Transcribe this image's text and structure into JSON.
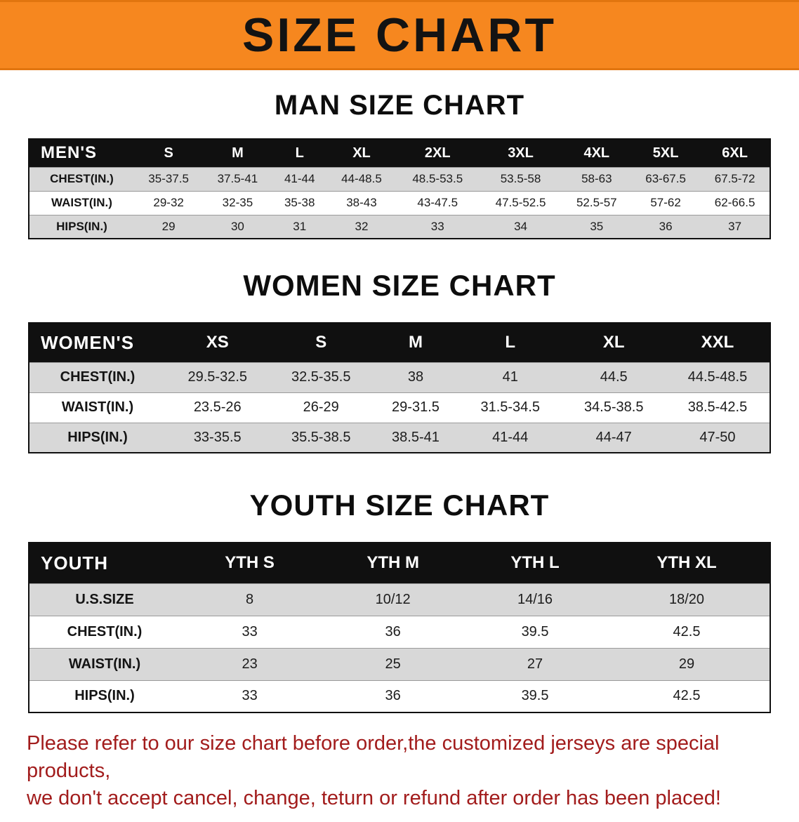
{
  "banner": {
    "title": "SIZE CHART",
    "bg_color": "#f6871f"
  },
  "sections": [
    {
      "id": "men",
      "heading": "MAN SIZE CHART",
      "table": {
        "corner_label": "MEN'S",
        "columns": [
          "S",
          "M",
          "L",
          "XL",
          "2XL",
          "3XL",
          "4XL",
          "5XL",
          "6XL"
        ],
        "rows": [
          {
            "label": "CHEST(IN.)",
            "values": [
              "35-37.5",
              "37.5-41",
              "41-44",
              "44-48.5",
              "48.5-53.5",
              "53.5-58",
              "58-63",
              "63-67.5",
              "67.5-72"
            ]
          },
          {
            "label": "WAIST(IN.)",
            "values": [
              "29-32",
              "32-35",
              "35-38",
              "38-43",
              "43-47.5",
              "47.5-52.5",
              "52.5-57",
              "57-62",
              "62-66.5"
            ]
          },
          {
            "label": "HIPS(IN.)",
            "values": [
              "29",
              "30",
              "31",
              "32",
              "33",
              "34",
              "35",
              "36",
              "37"
            ]
          }
        ]
      }
    },
    {
      "id": "women",
      "heading": "WOMEN SIZE CHART",
      "table": {
        "corner_label": "WOMEN'S",
        "columns": [
          "XS",
          "S",
          "M",
          "L",
          "XL",
          "XXL"
        ],
        "rows": [
          {
            "label": "CHEST(IN.)",
            "values": [
              "29.5-32.5",
              "32.5-35.5",
              "38",
              "41",
              "44.5",
              "44.5-48.5"
            ]
          },
          {
            "label": "WAIST(IN.)",
            "values": [
              "23.5-26",
              "26-29",
              "29-31.5",
              "31.5-34.5",
              "34.5-38.5",
              "38.5-42.5"
            ]
          },
          {
            "label": "HIPS(IN.)",
            "values": [
              "33-35.5",
              "35.5-38.5",
              "38.5-41",
              "41-44",
              "44-47",
              "47-50"
            ]
          }
        ]
      }
    },
    {
      "id": "youth",
      "heading": "YOUTH SIZE CHART",
      "table": {
        "corner_label": "YOUTH",
        "columns": [
          "YTH S",
          "YTH M",
          "YTH L",
          "YTH XL"
        ],
        "rows": [
          {
            "label": "U.S.SIZE",
            "values": [
              "8",
              "10/12",
              "14/16",
              "18/20"
            ]
          },
          {
            "label": "CHEST(IN.)",
            "values": [
              "33",
              "36",
              "39.5",
              "42.5"
            ]
          },
          {
            "label": "WAIST(IN.)",
            "values": [
              "23",
              "25",
              "27",
              "29"
            ]
          },
          {
            "label": "HIPS(IN.)",
            "values": [
              "33",
              "36",
              "39.5",
              "42.5"
            ]
          }
        ]
      }
    }
  ],
  "footer": {
    "color": "#a21c1c",
    "lines": [
      "Please refer to our size chart before order,the customized jerseys are special products,",
      "we don't accept cancel, change, teturn or refund after order has been placed!"
    ]
  }
}
